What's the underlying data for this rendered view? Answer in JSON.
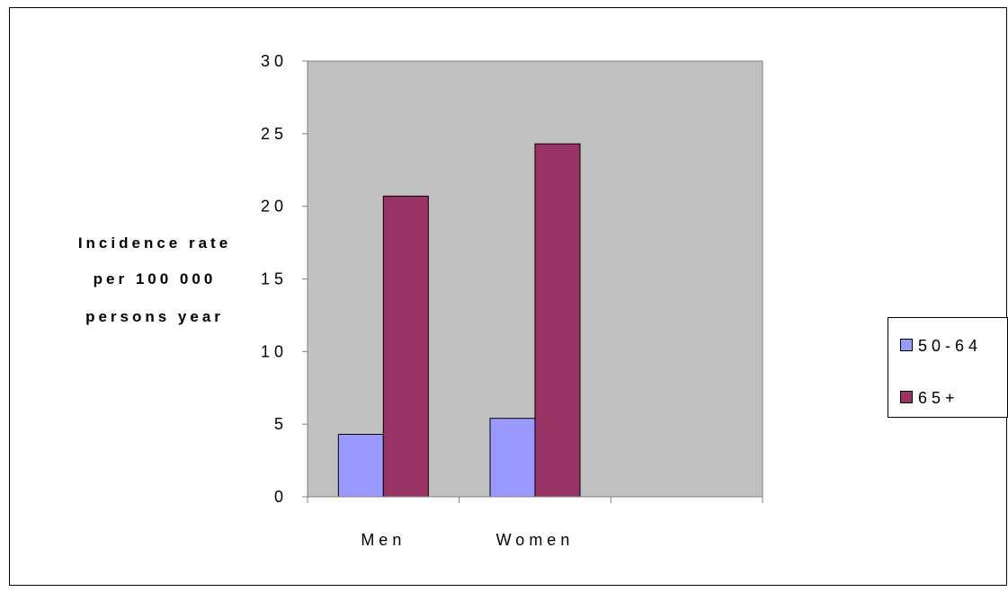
{
  "colors": {
    "plot_background": "#c0c0c0",
    "series_50_64": "#9999ff",
    "series_65_plus": "#993366",
    "axis": "#808080",
    "outline": "#000000"
  },
  "chart_data": {
    "type": "bar",
    "title": "",
    "xlabel": "",
    "ylabel": "Incidence rate per 100 000 persons year",
    "ylabel_lines": [
      "Incidence rate",
      "per 100 000",
      "persons year"
    ],
    "categories": [
      "Men",
      "Women",
      ""
    ],
    "series": [
      {
        "name": "50-64",
        "values": [
          4.3,
          5.4,
          null
        ]
      },
      {
        "name": "65+",
        "values": [
          20.7,
          24.3,
          null
        ]
      }
    ],
    "ylim": [
      0,
      30
    ],
    "yticks": [
      "0",
      "5",
      "10",
      "15",
      "20",
      "25",
      "30"
    ],
    "grid": false,
    "legend": "right"
  }
}
